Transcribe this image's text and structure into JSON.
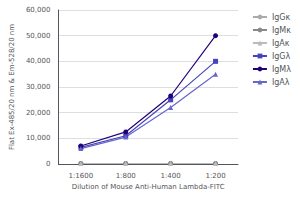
{
  "chart_data": {
    "type": "line",
    "categories": [
      "1:1600",
      "1:800",
      "1:400",
      "1:200"
    ],
    "series": [
      {
        "name": "IgGκ",
        "values": [
          200,
          200,
          200,
          200
        ],
        "color": "#aaaaaa",
        "marker": "circle"
      },
      {
        "name": "IgMκ",
        "values": [
          200,
          200,
          200,
          200
        ],
        "color": "#888888",
        "marker": "circle"
      },
      {
        "name": "IgAκ",
        "values": [
          200,
          200,
          200,
          200
        ],
        "color": "#bbbbbb",
        "marker": "triangle"
      },
      {
        "name": "IgGλ",
        "values": [
          6500,
          11000,
          25000,
          40000
        ],
        "color": "#4444bb",
        "marker": "square"
      },
      {
        "name": "IgMλ",
        "values": [
          7000,
          12500,
          26500,
          50000
        ],
        "color": "#220077",
        "marker": "circle"
      },
      {
        "name": "IgAλ",
        "values": [
          6000,
          10500,
          22000,
          35000
        ],
        "color": "#6666cc",
        "marker": "triangle"
      }
    ],
    "xlabel": "Dilution of Mouse Anti-Human Lambda-FITC",
    "ylabel": "Flat Ex-485/20 nm & Em-528/20 nm",
    "ylim": [
      0,
      60000
    ],
    "yticks": [
      0,
      {
        "value": 10000,
        "label": "10,000"
      },
      {
        "value": 20000,
        "label": "20,000"
      },
      {
        "value": 30000,
        "label": "30,000"
      },
      {
        "value": 40000,
        "label": "40,000"
      },
      {
        "value": 50000,
        "label": "50,000"
      },
      {
        "value": 60000,
        "label": "60,000"
      }
    ],
    "grid": true,
    "legend": "right"
  }
}
